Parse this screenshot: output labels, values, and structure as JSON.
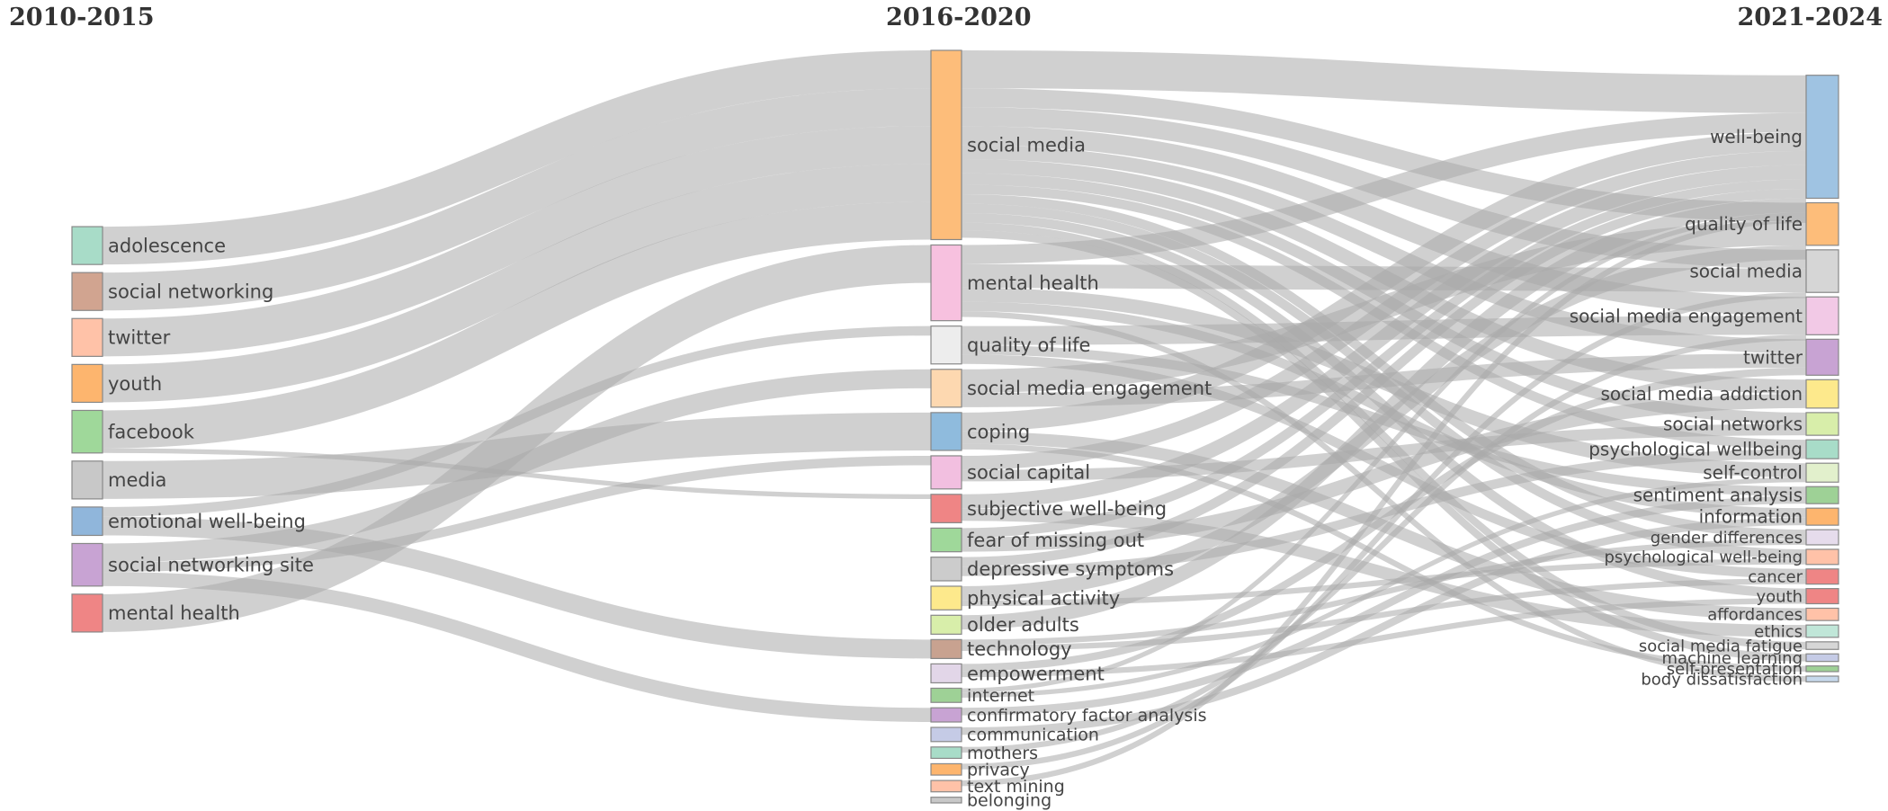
{
  "chart_data": {
    "type": "sankey",
    "columns": [
      {
        "label": "2010-2015",
        "nodes": [
          {
            "name": "adolescence",
            "value": 4,
            "color": "#a8dcc8"
          },
          {
            "name": "social networking",
            "value": 4,
            "color": "#d1a490"
          },
          {
            "name": "twitter",
            "value": 4,
            "color": "#ffc2a8"
          },
          {
            "name": "youth",
            "value": 4,
            "color": "#fdb56e"
          },
          {
            "name": "facebook",
            "value": 4.5,
            "color": "#9fd89a"
          },
          {
            "name": "media",
            "value": 4,
            "color": "#c8c8c8"
          },
          {
            "name": "emotional well-being",
            "value": 3,
            "color": "#90b6db"
          },
          {
            "name": "social networking site",
            "value": 4.5,
            "color": "#c8a3d3"
          },
          {
            "name": "mental health",
            "value": 4,
            "color": "#ef8585"
          }
        ]
      },
      {
        "label": "2016-2020",
        "nodes": [
          {
            "name": "social media",
            "value": 20,
            "color": "#fdbd7a"
          },
          {
            "name": "mental health",
            "value": 8,
            "color": "#f7c1df"
          },
          {
            "name": "quality of life",
            "value": 4,
            "color": "#ededed"
          },
          {
            "name": "social media engagement",
            "value": 4,
            "color": "#fdd8b0"
          },
          {
            "name": "coping",
            "value": 4,
            "color": "#8fbbdd"
          },
          {
            "name": "social capital",
            "value": 3.5,
            "color": "#f2bfe0"
          },
          {
            "name": "subjective well-being",
            "value": 3,
            "color": "#ef8585"
          },
          {
            "name": "fear of missing out",
            "value": 2.5,
            "color": "#9fd89a"
          },
          {
            "name": "depressive symptoms",
            "value": 2.5,
            "color": "#cccccc"
          },
          {
            "name": "physical activity",
            "value": 2.5,
            "color": "#fde98c"
          },
          {
            "name": "older adults",
            "value": 2,
            "color": "#d8eeaa"
          },
          {
            "name": "technology",
            "value": 2,
            "color": "#c8a290"
          },
          {
            "name": "empowerment",
            "value": 2,
            "color": "#e2d6e8"
          },
          {
            "name": "internet",
            "value": 1.5,
            "color": "#9ed196"
          },
          {
            "name": "confirmatory factor analysis",
            "value": 1.5,
            "color": "#c8a3d3"
          },
          {
            "name": "communication",
            "value": 1.5,
            "color": "#c5cbe6"
          },
          {
            "name": "mothers",
            "value": 1.2,
            "color": "#a8dcc8"
          },
          {
            "name": "privacy",
            "value": 1.2,
            "color": "#fdb56e"
          },
          {
            "name": "text mining",
            "value": 1.2,
            "color": "#ffc2a8"
          },
          {
            "name": "belonging",
            "value": 0.6,
            "color": "#c8c8c8"
          }
        ]
      },
      {
        "label": "2021-2024",
        "nodes": [
          {
            "name": "well-being",
            "value": 13,
            "color": "#9fc3e2"
          },
          {
            "name": "quality of life",
            "value": 4.5,
            "color": "#fdbd7a"
          },
          {
            "name": "social media",
            "value": 4.5,
            "color": "#d6d6d6"
          },
          {
            "name": "social media engagement",
            "value": 4,
            "color": "#f2c9e6"
          },
          {
            "name": "twitter",
            "value": 3.8,
            "color": "#c8a3d3"
          },
          {
            "name": "social media addiction",
            "value": 3,
            "color": "#fde98c"
          },
          {
            "name": "social networks",
            "value": 2.4,
            "color": "#d8eeaa"
          },
          {
            "name": "psychological wellbeing",
            "value": 2,
            "color": "#a8dcc8"
          },
          {
            "name": "self-control",
            "value": 2,
            "color": "#e2f0cc"
          },
          {
            "name": "sentiment analysis",
            "value": 1.8,
            "color": "#9ed196"
          },
          {
            "name": "information",
            "value": 1.8,
            "color": "#fdb56e"
          },
          {
            "name": "gender differences",
            "value": 1.6,
            "color": "#e6dcec"
          },
          {
            "name": "psychological well-being",
            "value": 1.6,
            "color": "#ffc2a8"
          },
          {
            "name": "cancer",
            "value": 1.6,
            "color": "#ef8585"
          },
          {
            "name": "youth",
            "value": 1.6,
            "color": "#ef8585"
          },
          {
            "name": "affordances",
            "value": 1.3,
            "color": "#ffc2a8"
          },
          {
            "name": "ethics",
            "value": 1.3,
            "color": "#c0e6d8"
          },
          {
            "name": "social media fatigue",
            "value": 0.8,
            "color": "#d6d6d6"
          },
          {
            "name": "machine learning",
            "value": 0.8,
            "color": "#c5cbe6"
          },
          {
            "name": "self-presentation",
            "value": 0.6,
            "color": "#9ed196"
          },
          {
            "name": "body dissatisfaction",
            "value": 0.6,
            "color": "#c6d9ec"
          }
        ]
      }
    ],
    "links": [
      {
        "source": [
          0,
          "adolescence"
        ],
        "target": [
          1,
          "social media"
        ],
        "value": 4
      },
      {
        "source": [
          0,
          "social networking"
        ],
        "target": [
          1,
          "social media"
        ],
        "value": 4
      },
      {
        "source": [
          0,
          "twitter"
        ],
        "target": [
          1,
          "social media"
        ],
        "value": 4
      },
      {
        "source": [
          0,
          "youth"
        ],
        "target": [
          1,
          "social media"
        ],
        "value": 4
      },
      {
        "source": [
          0,
          "facebook"
        ],
        "target": [
          1,
          "social media"
        ],
        "value": 4
      },
      {
        "source": [
          0,
          "facebook"
        ],
        "target": [
          1,
          "subjective well-being"
        ],
        "value": 0.5
      },
      {
        "source": [
          0,
          "media"
        ],
        "target": [
          1,
          "coping"
        ],
        "value": 4
      },
      {
        "source": [
          0,
          "emotional well-being"
        ],
        "target": [
          1,
          "technology"
        ],
        "value": 2
      },
      {
        "source": [
          0,
          "emotional well-being"
        ],
        "target": [
          1,
          "quality of life"
        ],
        "value": 1
      },
      {
        "source": [
          0,
          "social networking site"
        ],
        "target": [
          1,
          "social capital"
        ],
        "value": 1
      },
      {
        "source": [
          0,
          "social networking site"
        ],
        "target": [
          1,
          "social media engagement"
        ],
        "value": 2
      },
      {
        "source": [
          0,
          "social networking site"
        ],
        "target": [
          1,
          "confirmatory factor analysis"
        ],
        "value": 1.5
      },
      {
        "source": [
          0,
          "mental health"
        ],
        "target": [
          1,
          "mental health"
        ],
        "value": 4
      },
      {
        "source": [
          1,
          "social media"
        ],
        "target": [
          2,
          "well-being"
        ],
        "value": 4
      },
      {
        "source": [
          1,
          "social media"
        ],
        "target": [
          2,
          "quality of life"
        ],
        "value": 2
      },
      {
        "source": [
          1,
          "social media"
        ],
        "target": [
          2,
          "social media"
        ],
        "value": 2
      },
      {
        "source": [
          1,
          "social media"
        ],
        "target": [
          2,
          "social media engagement"
        ],
        "value": 2
      },
      {
        "source": [
          1,
          "social media"
        ],
        "target": [
          2,
          "twitter"
        ],
        "value": 1.5
      },
      {
        "source": [
          1,
          "social media"
        ],
        "target": [
          2,
          "social media addiction"
        ],
        "value": 1.5
      },
      {
        "source": [
          1,
          "social media"
        ],
        "target": [
          2,
          "social networks"
        ],
        "value": 1.2
      },
      {
        "source": [
          1,
          "social media"
        ],
        "target": [
          2,
          "psychological wellbeing"
        ],
        "value": 1
      },
      {
        "source": [
          1,
          "social media"
        ],
        "target": [
          2,
          "gender differences"
        ],
        "value": 1
      },
      {
        "source": [
          1,
          "social media"
        ],
        "target": [
          2,
          "psychological well-being"
        ],
        "value": 1
      },
      {
        "source": [
          1,
          "social media"
        ],
        "target": [
          2,
          "youth"
        ],
        "value": 1
      },
      {
        "source": [
          1,
          "social media"
        ],
        "target": [
          2,
          "social media fatigue"
        ],
        "value": 0.8
      },
      {
        "source": [
          1,
          "social media"
        ],
        "target": [
          2,
          "machine learning"
        ],
        "value": 0.8
      },
      {
        "source": [
          1,
          "mental health"
        ],
        "target": [
          2,
          "well-being"
        ],
        "value": 2
      },
      {
        "source": [
          1,
          "mental health"
        ],
        "target": [
          2,
          "social media"
        ],
        "value": 2.5
      },
      {
        "source": [
          1,
          "mental health"
        ],
        "target": [
          2,
          "self-control"
        ],
        "value": 1.5
      },
      {
        "source": [
          1,
          "mental health"
        ],
        "target": [
          2,
          "information"
        ],
        "value": 1
      },
      {
        "source": [
          1,
          "mental health"
        ],
        "target": [
          2,
          "body dissatisfaction"
        ],
        "value": 0.6
      },
      {
        "source": [
          1,
          "quality of life"
        ],
        "target": [
          2,
          "social media engagement"
        ],
        "value": 2
      },
      {
        "source": [
          1,
          "quality of life"
        ],
        "target": [
          2,
          "sentiment analysis"
        ],
        "value": 1
      },
      {
        "source": [
          1,
          "quality of life"
        ],
        "target": [
          2,
          "cancer"
        ],
        "value": 1
      },
      {
        "source": [
          1,
          "social media engagement"
        ],
        "target": [
          2,
          "quality of life"
        ],
        "value": 2.5
      },
      {
        "source": [
          1,
          "social media engagement"
        ],
        "target": [
          2,
          "twitter"
        ],
        "value": 1.5
      },
      {
        "source": [
          1,
          "coping"
        ],
        "target": [
          2,
          "well-being"
        ],
        "value": 2
      },
      {
        "source": [
          1,
          "coping"
        ],
        "target": [
          2,
          "affordances"
        ],
        "value": 1.3
      },
      {
        "source": [
          1,
          "coping"
        ],
        "target": [
          2,
          "self-presentation"
        ],
        "value": 0.6
      },
      {
        "source": [
          1,
          "social capital"
        ],
        "target": [
          2,
          "well-being"
        ],
        "value": 1.5
      },
      {
        "source": [
          1,
          "social capital"
        ],
        "target": [
          2,
          "social networks"
        ],
        "value": 1.2
      },
      {
        "source": [
          1,
          "subjective well-being"
        ],
        "target": [
          2,
          "well-being"
        ],
        "value": 1.5
      },
      {
        "source": [
          1,
          "subjective well-being"
        ],
        "target": [
          2,
          "ethics"
        ],
        "value": 1.3
      },
      {
        "source": [
          1,
          "fear of missing out"
        ],
        "target": [
          2,
          "social media addiction"
        ],
        "value": 1.5
      },
      {
        "source": [
          1,
          "fear of missing out"
        ],
        "target": [
          2,
          "well-being"
        ],
        "value": 1
      },
      {
        "source": [
          1,
          "depressive symptoms"
        ],
        "target": [
          2,
          "psychological wellbeing"
        ],
        "value": 1
      },
      {
        "source": [
          1,
          "depressive symptoms"
        ],
        "target": [
          2,
          "well-being"
        ],
        "value": 1
      },
      {
        "source": [
          1,
          "physical activity"
        ],
        "target": [
          2,
          "quality of life"
        ],
        "value": 1.5
      },
      {
        "source": [
          1,
          "physical activity"
        ],
        "target": [
          2,
          "psychological well-being"
        ],
        "value": 0.6
      },
      {
        "source": [
          1,
          "older adults"
        ],
        "target": [
          2,
          "well-being"
        ],
        "value": 1.5
      },
      {
        "source": [
          1,
          "technology"
        ],
        "target": [
          2,
          "gender differences"
        ],
        "value": 0.6
      },
      {
        "source": [
          1,
          "technology"
        ],
        "target": [
          2,
          "cancer"
        ],
        "value": 0.6
      },
      {
        "source": [
          1,
          "empowerment"
        ],
        "target": [
          2,
          "twitter"
        ],
        "value": 0.8
      },
      {
        "source": [
          1,
          "empowerment"
        ],
        "target": [
          2,
          "youth"
        ],
        "value": 0.6
      },
      {
        "source": [
          1,
          "internet"
        ],
        "target": [
          2,
          "self-control"
        ],
        "value": 0.5
      },
      {
        "source": [
          1,
          "internet"
        ],
        "target": [
          2,
          "well-being"
        ],
        "value": 0.5
      },
      {
        "source": [
          1,
          "confirmatory factor analysis"
        ],
        "target": [
          2,
          "sentiment analysis"
        ],
        "value": 0.8
      },
      {
        "source": [
          1,
          "communication"
        ],
        "target": [
          2,
          "information"
        ],
        "value": 0.8
      },
      {
        "source": [
          1,
          "mothers"
        ],
        "target": [
          2,
          "social media engagement"
        ],
        "value": 0.6
      },
      {
        "source": [
          1,
          "privacy"
        ],
        "target": [
          2,
          "social media"
        ],
        "value": 0.6
      },
      {
        "source": [
          1,
          "text mining"
        ],
        "target": [
          2,
          "well-being"
        ],
        "value": 0.6
      }
    ],
    "link_color": "#aaaaaa"
  }
}
